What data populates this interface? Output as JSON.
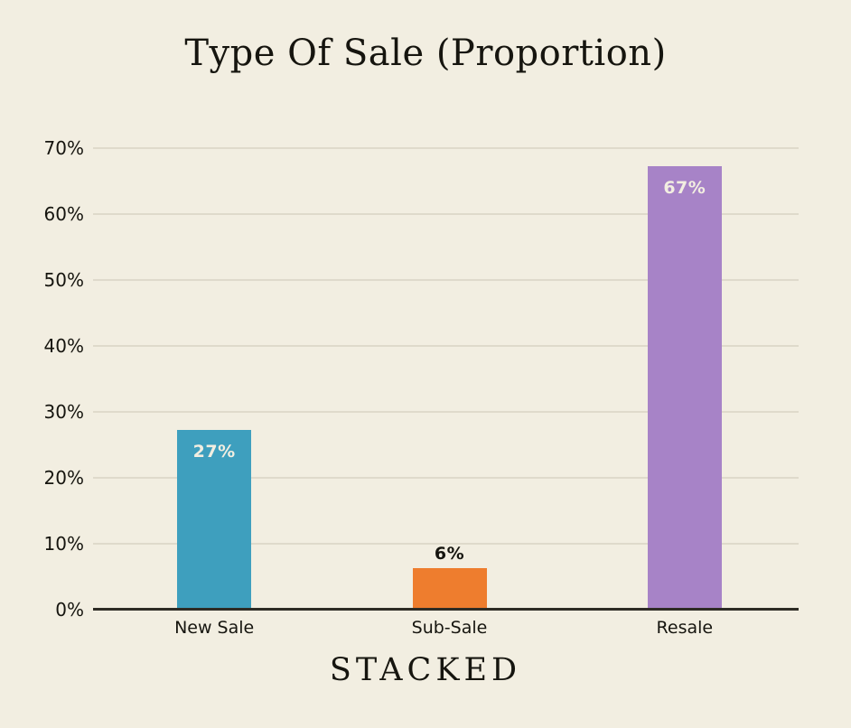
{
  "title": "Type Of Sale (Proportion)",
  "brand": "STACKED",
  "colors": {
    "background": "#F2EEE1",
    "gridline": "#DFDACB",
    "axis_line": "#2E2C25",
    "text": "#16150F",
    "inside_label": "#F2EEE1",
    "bar_new_sale": "#3E9FBE",
    "bar_sub_sale": "#EE7D2E",
    "bar_resale": "#A783C7"
  },
  "chart_data": {
    "type": "bar",
    "title": "Type Of Sale (Proportion)",
    "categories": [
      "New Sale",
      "Sub-Sale",
      "Resale"
    ],
    "values": [
      27,
      6,
      67
    ],
    "data_labels": [
      "27%",
      "6%",
      "67%"
    ],
    "label_positions": [
      "inside",
      "above",
      "inside"
    ],
    "bar_colors": [
      "#3E9FBE",
      "#EE7D2E",
      "#A783C7"
    ],
    "xlabel": "",
    "ylabel": "",
    "ylim": [
      0,
      70
    ],
    "ytick_step": 10,
    "ytick_labels": [
      "0%",
      "10%",
      "20%",
      "30%",
      "40%",
      "50%",
      "60%",
      "70%"
    ],
    "grid": true,
    "legend_position": "none"
  }
}
